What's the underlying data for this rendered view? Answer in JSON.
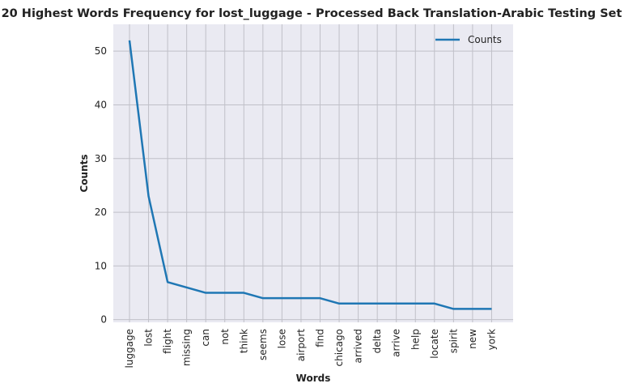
{
  "chart_data": {
    "type": "line",
    "title": "20 Highest Words Frequency for lost_luggage - Processed Back Translation-Arabic Testing Set",
    "xlabel": "Words",
    "ylabel": "Counts",
    "categories": [
      "luggage",
      "lost",
      "flight",
      "missing",
      "can",
      "not",
      "think",
      "seems",
      "lose",
      "airport",
      "find",
      "chicago",
      "arrived",
      "delta",
      "arrive",
      "help",
      "locate",
      "spirit",
      "new",
      "york"
    ],
    "series": [
      {
        "name": "Counts",
        "values": [
          52,
          23,
          7,
          6,
          5,
          5,
          5,
          4,
          4,
          4,
          4,
          3,
          3,
          3,
          3,
          3,
          3,
          2,
          2,
          2
        ],
        "color": "#1f77b4"
      }
    ],
    "yticks": [
      0,
      10,
      20,
      30,
      40,
      50
    ],
    "ylim": [
      -0.5,
      55
    ],
    "grid": true,
    "legend_position": "top-right",
    "colors": {
      "plot_background": "#eaeaf2",
      "grid": "#c0c0c8",
      "line": "#1f77b4"
    }
  }
}
